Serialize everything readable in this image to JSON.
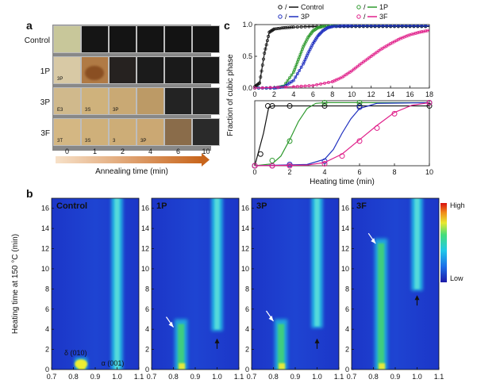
{
  "panels": {
    "a": "a",
    "b": "b",
    "c": "c"
  },
  "panel_a": {
    "rows": [
      "Control",
      "1P",
      "3P",
      "3F"
    ],
    "x_ticks": [
      "0",
      "1",
      "2",
      "4",
      "6",
      "10"
    ],
    "xlabel": "Annealing time (min)",
    "tile_colors": [
      [
        "#c8c79a",
        "#151515",
        "#141414",
        "#141414",
        "#131313",
        "#141414"
      ],
      [
        "#d8c9a5",
        "#b07a45",
        "#262220",
        "#1b1b1b",
        "#1a1a1a",
        "#1a1a1a"
      ],
      [
        "#d0b98c",
        "#cfb27c",
        "#c9a974",
        "#bc9a66",
        "#232323",
        "#252525"
      ],
      [
        "#d4b783",
        "#cfb07a",
        "#cdad77",
        "#cba873",
        "#8a6c4a",
        "#2a2a2a"
      ]
    ],
    "sample_marks": [
      [
        "",
        "",
        "",
        "",
        "",
        ""
      ],
      [
        "3P",
        "",
        "",
        "",
        "",
        ""
      ],
      [
        "E3",
        "3S",
        "3P",
        "",
        "",
        ""
      ],
      [
        "3T",
        "3S",
        "3",
        "3P",
        "",
        ""
      ]
    ]
  },
  "panel_b": {
    "ylabel": "Heating time at 150 °C (min)",
    "y_ticks": [
      "0",
      "2",
      "4",
      "6",
      "8",
      "10",
      "12",
      "14",
      "16"
    ],
    "x_ticks": [
      "0.7",
      "0.8",
      "0.9",
      "1.0",
      "1.1"
    ],
    "colorbar": {
      "high": "High",
      "low": "Low"
    },
    "maps": [
      {
        "name": "Control",
        "annotations": [
          "δ (010)",
          "α (001)"
        ],
        "delta_end_min": 1.2,
        "alpha_start_min": 0,
        "white_arrow": null,
        "black_arrow": null
      },
      {
        "name": "1P",
        "annotations": [],
        "delta_end_min": 5.0,
        "alpha_start_min": 4.0,
        "white_arrow": [
          0.8,
          4.2
        ],
        "black_arrow": [
          1.0,
          3.0
        ]
      },
      {
        "name": "3P",
        "annotations": [],
        "delta_end_min": 5.0,
        "alpha_start_min": 4.3,
        "white_arrow": [
          0.8,
          4.8
        ],
        "black_arrow": [
          1.0,
          3.0
        ]
      },
      {
        "name": "3F",
        "annotations": [],
        "delta_end_min": 13.0,
        "alpha_start_min": 8.0,
        "white_arrow": [
          0.81,
          12.5
        ],
        "black_arrow": [
          1.0,
          7.3
        ]
      }
    ]
  },
  "chart_data": [
    {
      "type": "line",
      "title": "",
      "xlabel": "",
      "ylabel": "Fraction of cubic phase",
      "xlim": [
        0,
        18
      ],
      "ylim": [
        0,
        1
      ],
      "x_ticks": [
        "0",
        "2",
        "4",
        "6",
        "8",
        "10",
        "12",
        "14",
        "16",
        "18"
      ],
      "y_ticks": [
        "0.0",
        "0.5",
        "1.0"
      ],
      "legend": [
        "Control",
        "1P",
        "3P",
        "3F"
      ],
      "series": [
        {
          "name": "Control",
          "color": "#111111",
          "x": [
            0,
            0.5,
            1.0,
            1.5,
            2.0,
            3,
            4,
            6,
            8,
            10,
            12,
            14,
            16,
            18
          ],
          "values": [
            0.02,
            0.08,
            0.55,
            0.88,
            0.93,
            0.95,
            0.96,
            0.97,
            0.97,
            0.97,
            0.97,
            0.97,
            0.97,
            0.97
          ]
        },
        {
          "name": "1P",
          "color": "#2e9a2e",
          "x": [
            0,
            2,
            3,
            4,
            4.5,
            5,
            5.5,
            6,
            6.5,
            7,
            8,
            10,
            12,
            14,
            16,
            18
          ],
          "values": [
            0.0,
            0.0,
            0.03,
            0.25,
            0.45,
            0.65,
            0.8,
            0.9,
            0.95,
            0.97,
            0.98,
            0.98,
            0.98,
            0.98,
            0.98,
            0.98
          ]
        },
        {
          "name": "3P",
          "color": "#1f2fbf",
          "x": [
            0,
            2,
            3,
            4,
            5,
            5.5,
            6,
            6.5,
            7,
            7.5,
            8,
            9,
            10,
            12,
            14,
            16,
            18
          ],
          "values": [
            0.0,
            0.0,
            0.02,
            0.12,
            0.38,
            0.55,
            0.7,
            0.82,
            0.9,
            0.95,
            0.97,
            0.98,
            0.98,
            0.98,
            0.98,
            0.98,
            0.98
          ]
        },
        {
          "name": "3F",
          "color": "#e0208a",
          "x": [
            0,
            4,
            6,
            8,
            9,
            10,
            11,
            12,
            13,
            14,
            15,
            16,
            17,
            18
          ],
          "values": [
            0.0,
            0.02,
            0.04,
            0.1,
            0.17,
            0.27,
            0.39,
            0.5,
            0.61,
            0.7,
            0.78,
            0.84,
            0.88,
            0.91
          ]
        }
      ]
    },
    {
      "type": "line",
      "title": "",
      "xlabel": "Heating time (min)",
      "ylabel": "Fraction of cubic phase",
      "xlim": [
        0,
        10
      ],
      "ylim": [
        0,
        1
      ],
      "x_ticks": [
        "0",
        "2",
        "4",
        "6",
        "8",
        "10"
      ],
      "series": [
        {
          "name": "Control",
          "color": "#111111",
          "markers": {
            "x": [
              0,
              0.33,
              0.75,
              1,
              2,
              4,
              6,
              10
            ],
            "y": [
              0.0,
              0.18,
              0.92,
              0.92,
              0.92,
              0.92,
              0.92,
              0.92
            ]
          },
          "fit": {
            "x": [
              0,
              0.5,
              0.8,
              1.0,
              10
            ],
            "y": [
              0.0,
              0.5,
              0.9,
              0.92,
              0.92
            ]
          }
        },
        {
          "name": "1P",
          "color": "#2e9a2e",
          "markers": {
            "x": [
              0,
              1,
              2,
              4,
              6,
              10
            ],
            "y": [
              0.0,
              0.08,
              0.38,
              0.97,
              0.97,
              0.97
            ]
          },
          "fit": {
            "x": [
              0,
              1,
              1.5,
              2,
              2.5,
              3,
              3.5,
              4,
              10
            ],
            "y": [
              0.0,
              0.03,
              0.15,
              0.4,
              0.68,
              0.88,
              0.96,
              0.97,
              0.97
            ]
          }
        },
        {
          "name": "3P",
          "color": "#1f2fbf",
          "markers": {
            "x": [
              0,
              1,
              2,
              4,
              6,
              10
            ],
            "y": [
              0.0,
              0.0,
              0.02,
              0.07,
              0.9,
              0.97
            ]
          },
          "fit": {
            "x": [
              0,
              3,
              4,
              4.5,
              5,
              5.5,
              6,
              7,
              10
            ],
            "y": [
              0.0,
              0.02,
              0.1,
              0.25,
              0.5,
              0.72,
              0.88,
              0.96,
              0.97
            ]
          }
        },
        {
          "name": "3F",
          "color": "#e0208a",
          "markers": {
            "x": [
              0,
              1,
              2,
              4,
              5,
              6,
              7,
              8,
              10
            ],
            "y": [
              0.0,
              0.0,
              0.0,
              0.03,
              0.15,
              0.38,
              0.58,
              0.8,
              0.97
            ]
          },
          "fit": {
            "x": [
              0,
              3,
              4,
              5,
              6,
              7,
              8,
              9,
              10
            ],
            "y": [
              0.0,
              0.01,
              0.05,
              0.18,
              0.4,
              0.62,
              0.82,
              0.93,
              0.97
            ]
          }
        }
      ]
    }
  ]
}
